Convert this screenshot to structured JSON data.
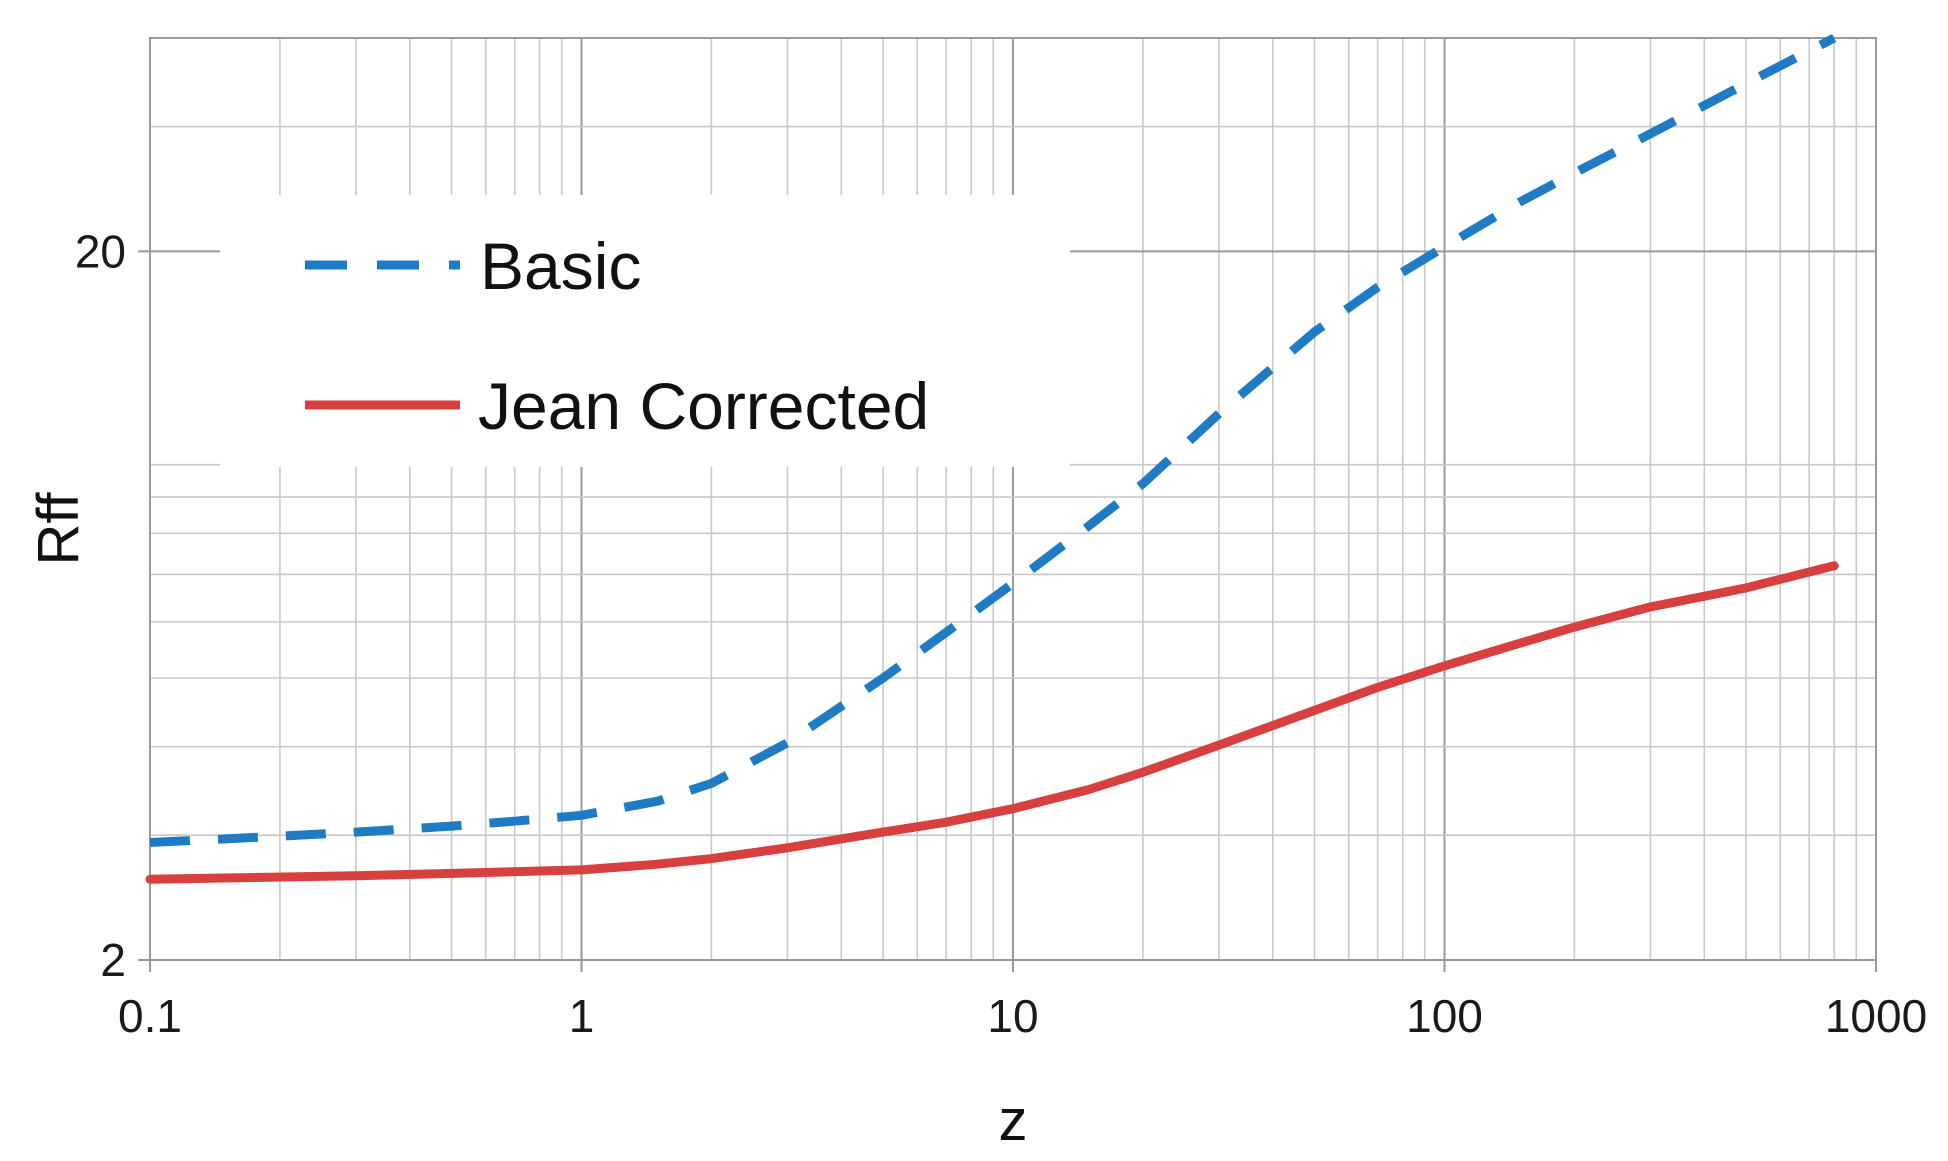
{
  "chart_data": {
    "type": "line",
    "title": "",
    "xlabel": "z",
    "ylabel": "Rff",
    "xscale": "log",
    "yscale": "log",
    "xlim": [
      0.1,
      1000
    ],
    "ylim": [
      2,
      40
    ],
    "x_ticks": [
      {
        "value": 0.1,
        "label": "0.1"
      },
      {
        "value": 1,
        "label": "1"
      },
      {
        "value": 10,
        "label": "10"
      },
      {
        "value": 100,
        "label": "100"
      },
      {
        "value": 1000,
        "label": "1000"
      }
    ],
    "y_ticks": [
      {
        "value": 2,
        "label": "2"
      },
      {
        "value": 20,
        "label": "20"
      }
    ],
    "grid": true,
    "legend": {
      "position": "top-left"
    },
    "series": [
      {
        "name": "Basic",
        "style": "dashed",
        "color": "#1f7cc4",
        "x": [
          0.1,
          0.2,
          0.3,
          0.5,
          0.7,
          1,
          1.5,
          2,
          3,
          5,
          7,
          10,
          15,
          20,
          30,
          50,
          70,
          100,
          150,
          200,
          300,
          500,
          800
        ],
        "y": [
          2.93,
          2.99,
          3.03,
          3.09,
          3.14,
          3.2,
          3.35,
          3.55,
          4.05,
          5.0,
          5.8,
          6.8,
          8.2,
          9.4,
          11.8,
          15.4,
          17.8,
          20.3,
          23.5,
          25.8,
          29.3,
          34.5,
          40.0
        ]
      },
      {
        "name": "Jean Corrected",
        "style": "solid",
        "color": "#d8403f",
        "x": [
          0.1,
          0.3,
          0.5,
          1,
          1.5,
          2,
          3,
          5,
          7,
          10,
          15,
          20,
          30,
          50,
          70,
          100,
          150,
          200,
          300,
          500,
          800
        ],
        "y": [
          2.6,
          2.63,
          2.65,
          2.68,
          2.73,
          2.78,
          2.88,
          3.03,
          3.13,
          3.27,
          3.48,
          3.68,
          4.02,
          4.5,
          4.85,
          5.2,
          5.6,
          5.9,
          6.3,
          6.7,
          7.2
        ]
      }
    ]
  }
}
